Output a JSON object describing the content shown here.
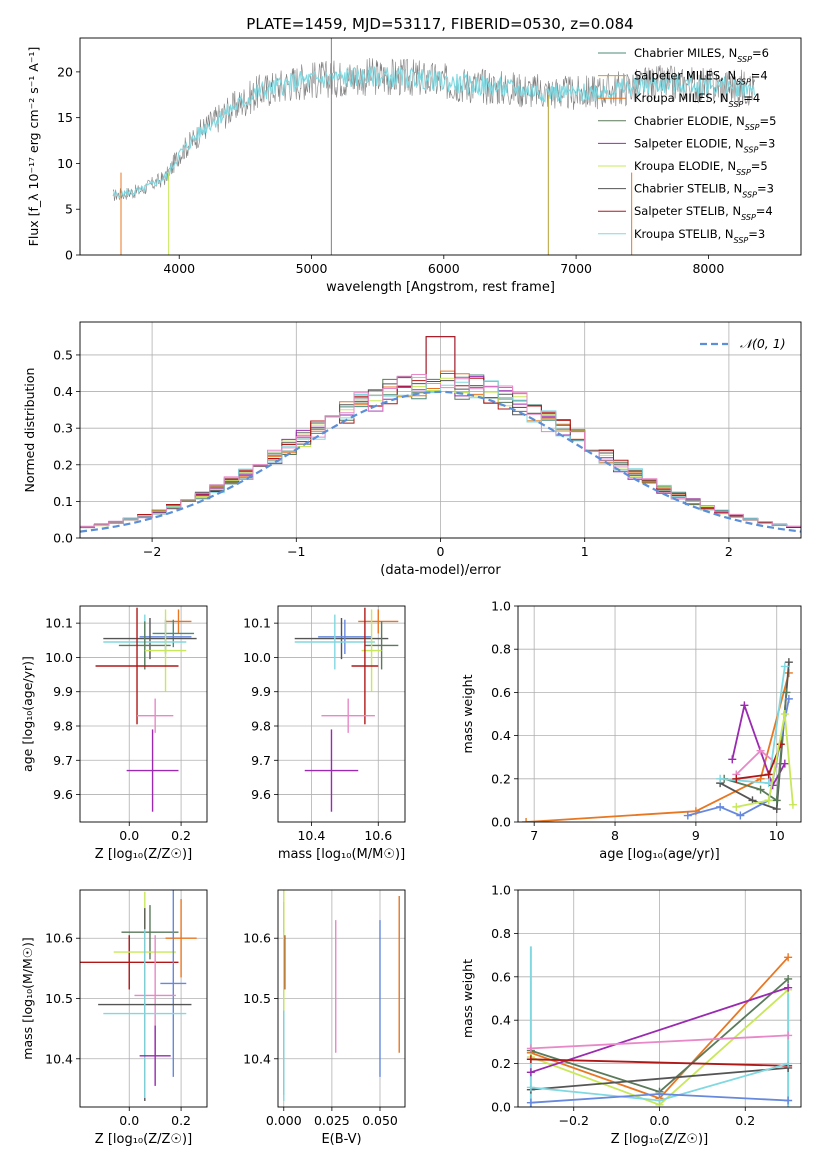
{
  "colors": {
    "Chabrier MILES": "#4a8a7a",
    "Salpeter MILES": "#d4a017",
    "Kroupa MILES": "#e87722",
    "Chabrier ELODIE": "#5a7a5a",
    "Salpeter ELODIE": "#9a2ab0",
    "Kroupa ELODIE": "#c8e85a",
    "Chabrier STELIB": "#555555",
    "Salpeter STELIB": "#b01818",
    "Kroupa STELIB": "#80d8e0",
    "pink": "#e888c8",
    "blue": "#6688dd",
    "normal": "#5b8fd8"
  },
  "chart_data": [
    {
      "id": "spectrum",
      "type": "line",
      "title": "PLATE=1459, MJD=53117, FIBERID=0530, z=0.084",
      "xlabel": "wavelength [Angstrom, rest frame]",
      "ylabel": "Flux [f_λ 10⁻¹⁷ erg cm⁻² s⁻¹ A⁻¹]",
      "xlim": [
        3250,
        8700
      ],
      "ylim": [
        0,
        23.7
      ],
      "xticks": [
        4000,
        5000,
        6000,
        7000,
        8000
      ],
      "yticks": [
        0,
        5,
        10,
        15,
        20
      ],
      "legend_loc": "upper right",
      "continuum": [
        [
          3500,
          6.5
        ],
        [
          3700,
          7
        ],
        [
          3900,
          8.5
        ],
        [
          4000,
          11
        ],
        [
          4200,
          14
        ],
        [
          4400,
          16
        ],
        [
          4600,
          17.8
        ],
        [
          4900,
          19
        ],
        [
          5200,
          19.3
        ],
        [
          5500,
          19.5
        ],
        [
          5800,
          19.3
        ],
        [
          6100,
          18.7
        ],
        [
          6400,
          18.3
        ],
        [
          6700,
          17.9
        ],
        [
          7000,
          17.6
        ],
        [
          7300,
          18.1
        ],
        [
          7600,
          18.7
        ],
        [
          7900,
          18.6
        ],
        [
          8300,
          18.3
        ]
      ],
      "spikes": [
        5150,
        6790,
        3920,
        7420,
        3560
      ],
      "legend": [
        {
          "name": "Chabrier MILES",
          "ssp": "6"
        },
        {
          "name": "Salpeter MILES",
          "ssp": "4"
        },
        {
          "name": "Kroupa MILES",
          "ssp": "4"
        },
        {
          "name": "Chabrier ELODIE",
          "ssp": "5"
        },
        {
          "name": "Salpeter ELODIE",
          "ssp": "3"
        },
        {
          "name": "Kroupa ELODIE",
          "ssp": "5"
        },
        {
          "name": "Chabrier STELIB",
          "ssp": "3"
        },
        {
          "name": "Salpeter STELIB",
          "ssp": "4"
        },
        {
          "name": "Kroupa STELIB",
          "ssp": "3"
        }
      ]
    },
    {
      "id": "residuals",
      "type": "line",
      "xlabel": "(data-model)/error",
      "ylabel": "Normed distribution",
      "xlim": [
        -2.5,
        2.5
      ],
      "ylim": [
        0,
        0.59
      ],
      "xticks": [
        -2,
        -1,
        0,
        1,
        2
      ],
      "yticks": [
        0.0,
        0.1,
        0.2,
        0.3,
        0.4,
        0.5
      ],
      "grid": true,
      "legend": "𝒩(0, 1)",
      "legend_loc": "upper right",
      "bin_width": 0.1
    },
    {
      "id": "age-vs-Z",
      "type": "scatter",
      "xlabel": "Z [log₁₀(Z/Z☉)]",
      "ylabel": "age  [log₁₀(age/yr)]",
      "xlim": [
        -0.19,
        0.3
      ],
      "ylim": [
        9.52,
        10.15
      ],
      "xticks": [
        0.0,
        0.2
      ],
      "yticks": [
        9.6,
        9.7,
        9.8,
        9.9,
        10.0,
        10.1
      ],
      "grid": true,
      "points": [
        {
          "s": "Kroupa MILES",
          "x": 0.19,
          "y": 10.105,
          "xe": 0.05,
          "ye": 0.035
        },
        {
          "s": "Chabrier MILES",
          "x": 0.17,
          "y": 10.07,
          "xe": 0.08,
          "ye": 0.04
        },
        {
          "s": "blue",
          "x": 0.14,
          "y": 10.06,
          "xe": 0.1,
          "ye": 0.05
        },
        {
          "s": "Chabrier STELIB",
          "x": 0.08,
          "y": 10.055,
          "xe": 0.18,
          "ye": 0.06
        },
        {
          "s": "Kroupa STELIB",
          "x": 0.06,
          "y": 10.045,
          "xe": 0.16,
          "ye": 0.08
        },
        {
          "s": "Chabrier ELODIE",
          "x": 0.06,
          "y": 10.035,
          "xe": 0.1,
          "ye": 0.07
        },
        {
          "s": "Kroupa ELODIE",
          "x": 0.14,
          "y": 10.02,
          "xe": 0.08,
          "ye": 0.12
        },
        {
          "s": "Salpeter STELIB",
          "x": 0.03,
          "y": 9.975,
          "xe": 0.16,
          "ye": 0.17
        },
        {
          "s": "pink",
          "x": 0.1,
          "y": 9.83,
          "xe": 0.07,
          "ye": 0.05
        },
        {
          "s": "Salpeter ELODIE",
          "x": 0.09,
          "y": 9.67,
          "xe": 0.1,
          "ye": 0.12
        }
      ]
    },
    {
      "id": "age-vs-mass",
      "type": "scatter",
      "xlabel": "mass [log₁₀(M/M☉)]",
      "ylabel": "",
      "xlim": [
        10.3,
        10.68
      ],
      "ylim": [
        9.52,
        10.15
      ],
      "xticks": [
        10.4,
        10.6
      ],
      "yticks": [
        9.6,
        9.7,
        9.8,
        9.9,
        10.0,
        10.1
      ],
      "grid": true,
      "points": [
        {
          "s": "Kroupa MILES",
          "x": 10.6,
          "y": 10.105,
          "xe": 0.06,
          "ye": 0.035
        },
        {
          "s": "Chabrier STELIB",
          "x": 10.49,
          "y": 10.055,
          "xe": 0.14,
          "ye": 0.06
        },
        {
          "s": "blue",
          "x": 10.5,
          "y": 10.06,
          "xe": 0.08,
          "ye": 0.05
        },
        {
          "s": "Kroupa STELIB",
          "x": 10.47,
          "y": 10.045,
          "xe": 0.12,
          "ye": 0.08
        },
        {
          "s": "Chabrier ELODIE",
          "x": 10.61,
          "y": 10.035,
          "xe": 0.05,
          "ye": 0.07
        },
        {
          "s": "Kroupa ELODIE",
          "x": 10.58,
          "y": 10.02,
          "xe": 0.03,
          "ye": 0.12
        },
        {
          "s": "Salpeter STELIB",
          "x": 10.56,
          "y": 9.975,
          "xe": 0.04,
          "ye": 0.17
        },
        {
          "s": "pink",
          "x": 10.51,
          "y": 9.83,
          "xe": 0.08,
          "ye": 0.05
        },
        {
          "s": "Salpeter ELODIE",
          "x": 10.46,
          "y": 9.67,
          "xe": 0.08,
          "ye": 0.12
        }
      ]
    },
    {
      "id": "mass-weight-vs-age",
      "type": "line",
      "xlabel": "age  [log₁₀(age/yr)]",
      "ylabel": "mass weight",
      "xlim": [
        6.8,
        10.3
      ],
      "ylim": [
        0,
        1.0
      ],
      "xticks": [
        7,
        8,
        9,
        10
      ],
      "yticks": [
        0.0,
        0.2,
        0.4,
        0.6,
        0.8,
        1.0
      ],
      "grid": true,
      "series": [
        {
          "s": "Kroupa MILES",
          "pts": [
            [
              6.9,
              0.0
            ],
            [
              9.0,
              0.05
            ],
            [
              9.8,
              0.2
            ],
            [
              10.15,
              0.69
            ]
          ]
        },
        {
          "s": "Salpeter ELODIE",
          "pts": [
            [
              9.45,
              0.29
            ],
            [
              9.6,
              0.54
            ],
            [
              9.95,
              0.17
            ],
            [
              10.1,
              0.27
            ]
          ]
        },
        {
          "s": "pink",
          "pts": [
            [
              9.5,
              0.22
            ],
            [
              9.8,
              0.33
            ],
            [
              10.0,
              0.27
            ]
          ]
        },
        {
          "s": "Chabrier STELIB",
          "pts": [
            [
              9.3,
              0.18
            ],
            [
              9.7,
              0.1
            ],
            [
              10.0,
              0.06
            ],
            [
              10.15,
              0.74
            ]
          ]
        },
        {
          "s": "Chabrier ELODIE",
          "pts": [
            [
              9.35,
              0.2
            ],
            [
              9.8,
              0.15
            ],
            [
              10.0,
              0.1
            ],
            [
              10.12,
              0.6
            ]
          ]
        },
        {
          "s": "Kroupa STELIB",
          "pts": [
            [
              9.3,
              0.2
            ],
            [
              9.9,
              0.18
            ],
            [
              10.1,
              0.72
            ]
          ]
        },
        {
          "s": "blue",
          "pts": [
            [
              8.9,
              0.03
            ],
            [
              9.3,
              0.07
            ],
            [
              9.55,
              0.03
            ],
            [
              9.9,
              0.1
            ],
            [
              10.15,
              0.57
            ]
          ]
        },
        {
          "s": "Salpeter STELIB",
          "pts": [
            [
              9.5,
              0.2
            ],
            [
              9.9,
              0.22
            ],
            [
              10.05,
              0.36
            ]
          ]
        },
        {
          "s": "Kroupa ELODIE",
          "pts": [
            [
              9.5,
              0.07
            ],
            [
              9.9,
              0.1
            ],
            [
              10.1,
              0.5
            ],
            [
              10.2,
              0.08
            ]
          ]
        }
      ]
    },
    {
      "id": "mass-vs-Z",
      "type": "scatter",
      "xlabel": "Z [log₁₀(Z/Z☉)]",
      "ylabel": "mass [log₁₀(M/M☉)]",
      "xlim": [
        -0.19,
        0.3
      ],
      "ylim": [
        10.32,
        10.68
      ],
      "xticks": [
        0.0,
        0.2
      ],
      "yticks": [
        10.4,
        10.5,
        10.6
      ],
      "grid": true,
      "points": [
        {
          "s": "Chabrier ELODIE",
          "x": 0.08,
          "y": 10.61,
          "xe": 0.11,
          "ye": 0.045
        },
        {
          "s": "Kroupa MILES",
          "x": 0.2,
          "y": 10.6,
          "xe": 0.06,
          "ye": 0.065
        },
        {
          "s": "Salpeter STELIB",
          "x": 0.0,
          "y": 10.56,
          "xe": 0.19,
          "ye": 0.045
        },
        {
          "s": "Kroupa ELODIE",
          "x": 0.06,
          "y": 10.577,
          "xe": 0.12,
          "ye": 0.1
        },
        {
          "s": "blue",
          "x": 0.17,
          "y": 10.525,
          "xe": 0.05,
          "ye": 0.155
        },
        {
          "s": "pink",
          "x": 0.1,
          "y": 10.505,
          "xe": 0.08,
          "ye": 0.1
        },
        {
          "s": "Chabrier STELIB",
          "x": 0.06,
          "y": 10.49,
          "xe": 0.18,
          "ye": 0.16
        },
        {
          "s": "Kroupa STELIB",
          "x": 0.06,
          "y": 10.475,
          "xe": 0.16,
          "ye": 0.14
        },
        {
          "s": "Salpeter ELODIE",
          "x": 0.1,
          "y": 10.405,
          "xe": 0.06,
          "ye": 0.05
        }
      ]
    },
    {
      "id": "mass-vs-EBV",
      "type": "scatter",
      "xlabel": "E(B-V)",
      "ylabel": "",
      "xlim": [
        -0.003,
        0.063
      ],
      "ylim": [
        10.32,
        10.68
      ],
      "xticks": [
        0.0,
        0.025,
        0.05
      ],
      "yticks": [
        10.4,
        10.5,
        10.6
      ],
      "grid": true,
      "points": [
        {
          "s": "Kroupa MILES",
          "x": 0.06,
          "y": 10.54,
          "ye": 0.13
        },
        {
          "s": "pink",
          "x": 0.027,
          "y": 10.52,
          "ye": 0.11
        },
        {
          "s": "blue",
          "x": 0.05,
          "y": 10.5,
          "ye": 0.13
        },
        {
          "s": "Salpeter STELIB",
          "x": 0.0005,
          "y": 10.56,
          "ye": 0.045
        },
        {
          "s": "Chabrier ELODIE",
          "x": 0.0,
          "y": 10.5,
          "ye": 0.16
        },
        {
          "s": "Kroupa STELIB",
          "x": 0.0,
          "y": 10.47,
          "ye": 0.14
        },
        {
          "s": "Kroupa ELODIE",
          "x": 0.0,
          "y": 10.58,
          "ye": 0.1
        }
      ]
    },
    {
      "id": "mass-weight-vs-Z",
      "type": "line",
      "xlabel": "Z [log₁₀(Z/Z☉)]",
      "ylabel": "mass weight",
      "xlim": [
        -0.33,
        0.33
      ],
      "ylim": [
        0,
        1.0
      ],
      "xticks": [
        -0.2,
        0.0,
        0.2
      ],
      "yticks": [
        0.0,
        0.2,
        0.4,
        0.6,
        0.8,
        1.0
      ],
      "grid": true,
      "series": [
        {
          "s": "Kroupa MILES",
          "pts": [
            [
              -0.3,
              0.25
            ],
            [
              0.0,
              0.04
            ],
            [
              0.3,
              0.69
            ]
          ]
        },
        {
          "s": "Chabrier ELODIE",
          "pts": [
            [
              -0.3,
              0.26
            ],
            [
              0.0,
              0.07
            ],
            [
              0.3,
              0.59
            ]
          ]
        },
        {
          "s": "Kroupa ELODIE",
          "pts": [
            [
              -0.3,
              0.23
            ],
            [
              0.0,
              0.01
            ],
            [
              0.3,
              0.54
            ]
          ]
        },
        {
          "s": "Salpeter ELODIE",
          "pts": [
            [
              -0.3,
              0.16
            ],
            [
              0.3,
              0.55
            ]
          ]
        },
        {
          "s": "pink",
          "pts": [
            [
              -0.3,
              0.27
            ],
            [
              0.3,
              0.33
            ]
          ]
        },
        {
          "s": "Salpeter STELIB",
          "pts": [
            [
              -0.3,
              0.22
            ],
            [
              0.3,
              0.19
            ]
          ]
        },
        {
          "s": "Chabrier STELIB",
          "pts": [
            [
              -0.3,
              0.08
            ],
            [
              0.3,
              0.18
            ]
          ]
        },
        {
          "s": "Kroupa STELIB",
          "pts": [
            [
              -0.3,
              0.09
            ],
            [
              0.0,
              0.03
            ],
            [
              0.3,
              0.2
            ]
          ]
        },
        {
          "s": "blue",
          "pts": [
            [
              -0.3,
              0.02
            ],
            [
              0.0,
              0.06
            ],
            [
              0.3,
              0.03
            ]
          ]
        }
      ],
      "vertical_stacks": [
        {
          "x": -0.3,
          "values": [
            0.74,
            0.36,
            0.28,
            0.25,
            0.22,
            0.16,
            0.09,
            0.08
          ]
        },
        {
          "x": 0.3,
          "values": [
            0.58,
            0.55,
            0.33,
            0.2,
            0.19,
            0.05,
            0.03
          ]
        }
      ]
    }
  ]
}
